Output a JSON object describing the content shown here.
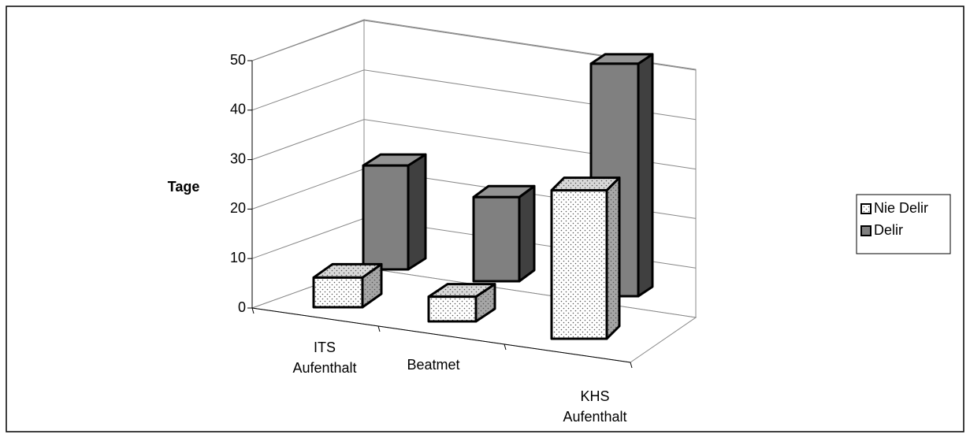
{
  "chart_data": {
    "type": "bar3d",
    "y_label": "Tage",
    "categories": [
      "ITS Aufenthalt",
      "Beatmet",
      "KHS Aufenthalt"
    ],
    "series": [
      {
        "name": "Nie Delir",
        "color": "#ffffff",
        "pattern": "dots",
        "values": [
          6,
          5,
          30
        ]
      },
      {
        "name": "Delir",
        "color": "#808080",
        "values": [
          21,
          17,
          47
        ]
      }
    ],
    "ylim": [
      0,
      50
    ],
    "yticks": [
      0,
      10,
      20,
      30,
      40,
      50
    ],
    "grid": true,
    "legend": "right"
  }
}
